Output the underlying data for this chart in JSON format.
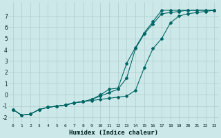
{
  "xlabel": "Humidex (Indice chaleur)",
  "background_color": "#cde8e8",
  "grid_color": "#b0cccc",
  "line_color": "#006666",
  "xlim": [
    -0.5,
    23.5
  ],
  "ylim": [
    -2.5,
    8.2
  ],
  "yticks": [
    -2,
    -1,
    0,
    1,
    2,
    3,
    4,
    5,
    6,
    7
  ],
  "xticks": [
    0,
    1,
    2,
    3,
    4,
    5,
    6,
    7,
    8,
    9,
    10,
    11,
    12,
    13,
    14,
    15,
    16,
    17,
    18,
    19,
    20,
    21,
    22,
    23
  ],
  "curve1_x": [
    0,
    1,
    2,
    3,
    4,
    5,
    6,
    7,
    8,
    9,
    10,
    11,
    12,
    13,
    14,
    15,
    16,
    17,
    18,
    19,
    20,
    21,
    22,
    23
  ],
  "curve1_y": [
    -1.3,
    -1.8,
    -1.7,
    -1.3,
    -1.1,
    -1.0,
    -0.9,
    -0.7,
    -0.6,
    -0.5,
    -0.4,
    -0.3,
    -0.2,
    -0.1,
    0.4,
    2.4,
    4.1,
    5.0,
    6.4,
    7.0,
    7.2,
    7.3,
    7.4,
    7.5
  ],
  "curve2_x": [
    0,
    1,
    2,
    3,
    4,
    5,
    6,
    7,
    8,
    9,
    10,
    11,
    12,
    13,
    14,
    15,
    16,
    17,
    18,
    19,
    20,
    21,
    22,
    23
  ],
  "curve2_y": [
    -1.3,
    -1.8,
    -1.7,
    -1.3,
    -1.1,
    -1.0,
    -0.9,
    -0.7,
    -0.6,
    -0.4,
    -0.1,
    0.2,
    0.5,
    1.5,
    4.1,
    5.4,
    6.3,
    7.2,
    7.3,
    7.4,
    7.5,
    7.5,
    7.5,
    7.5
  ],
  "curve3_x": [
    0,
    1,
    2,
    3,
    4,
    5,
    6,
    7,
    8,
    9,
    10,
    11,
    12,
    13,
    14,
    15,
    16,
    17,
    18,
    19,
    20,
    21,
    22,
    23
  ],
  "curve3_y": [
    -1.3,
    -1.8,
    -1.7,
    -1.3,
    -1.1,
    -1.0,
    -0.9,
    -0.7,
    -0.6,
    -0.4,
    0.0,
    0.5,
    0.6,
    2.8,
    4.2,
    5.5,
    6.5,
    7.5,
    7.5,
    7.5,
    7.5,
    7.5,
    7.5,
    7.5
  ]
}
